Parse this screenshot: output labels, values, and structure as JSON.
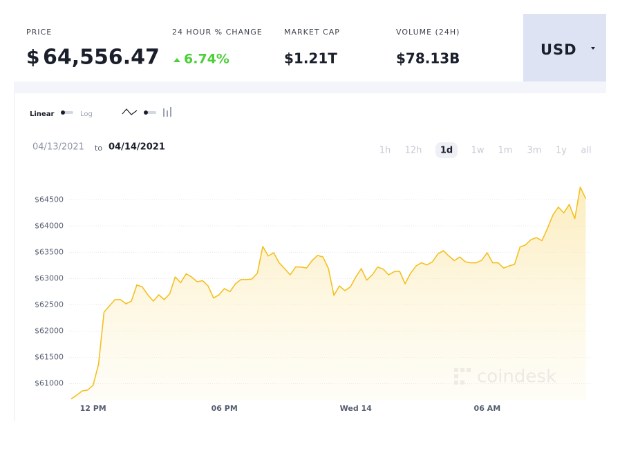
{
  "header": {
    "price": {
      "label": "PRICE",
      "symbol": "$",
      "value": "64,556.47"
    },
    "change": {
      "label": "24 HOUR % CHANGE",
      "value": "6.74%"
    },
    "market_cap": {
      "label": "MARKET CAP",
      "value": "$1.21T"
    },
    "volume": {
      "label": "VOLUME (24H)",
      "value": "$78.13B"
    },
    "currency": "USD"
  },
  "controls": {
    "scale_options": [
      "Linear",
      "Log"
    ],
    "date_from": "04/13/2021",
    "date_sep": "to",
    "date_to": "04/14/2021",
    "ranges": [
      "1h",
      "12h",
      "1d",
      "1w",
      "1m",
      "3m",
      "1y",
      "all"
    ],
    "active_range": "1d"
  },
  "watermark": "coindesk",
  "chart_data": {
    "type": "line",
    "color": "#f3c020",
    "area": true,
    "grid": true,
    "x": [
      11,
      11.25,
      11.5,
      11.75,
      12,
      12.25,
      12.5,
      12.75,
      13,
      13.25,
      13.5,
      13.75,
      14,
      14.25,
      14.5,
      14.75,
      15,
      15.25,
      15.5,
      15.75,
      16,
      16.25,
      16.5,
      16.75,
      17,
      17.25,
      17.5,
      17.75,
      18,
      18.25,
      18.5,
      18.75,
      19,
      19.25,
      19.5,
      19.75,
      20,
      20.25,
      20.5,
      20.75,
      21,
      21.25,
      21.5,
      21.75,
      22,
      22.25,
      22.5,
      22.75,
      23,
      23.25,
      23.5,
      23.75,
      24,
      24.25,
      24.5,
      24.75,
      25,
      25.25,
      25.5,
      25.75,
      26,
      26.25,
      26.5,
      26.75,
      27,
      27.25,
      27.5,
      27.75,
      28,
      28.25,
      28.5,
      28.75,
      29,
      29.25,
      29.5,
      29.75,
      30,
      30.25,
      30.5,
      30.75,
      31,
      31.25,
      31.5,
      31.75,
      32,
      32.25,
      32.5,
      32.75,
      33,
      33.25,
      33.5,
      33.75,
      34,
      34.25,
      34.5
    ],
    "values": [
      60710,
      60780,
      60860,
      60880,
      60970,
      61370,
      62360,
      62480,
      62600,
      62600,
      62520,
      62570,
      62880,
      62840,
      62690,
      62570,
      62690,
      62600,
      62710,
      63030,
      62920,
      63090,
      63030,
      62940,
      62960,
      62860,
      62630,
      62690,
      62810,
      62750,
      62900,
      62980,
      62980,
      62990,
      63100,
      63610,
      63430,
      63490,
      63300,
      63190,
      63070,
      63220,
      63220,
      63200,
      63340,
      63440,
      63410,
      63190,
      62680,
      62860,
      62770,
      62840,
      63030,
      63190,
      62970,
      63070,
      63220,
      63180,
      63070,
      63130,
      63140,
      62900,
      63100,
      63240,
      63300,
      63260,
      63320,
      63470,
      63530,
      63430,
      63340,
      63410,
      63320,
      63300,
      63300,
      63350,
      63490,
      63300,
      63300,
      63200,
      63240,
      63270,
      63600,
      63640,
      63740,
      63780,
      63720,
      63950,
      64210,
      64360,
      64250,
      64410,
      64140,
      64740,
      64520
    ],
    "xlim": [
      11,
      34.74
    ],
    "xticks": [
      {
        "value": 12,
        "label": "12 PM"
      },
      {
        "value": 18,
        "label": "06 PM"
      },
      {
        "value": 24,
        "label": "Wed 14"
      },
      {
        "value": 30,
        "label": "06 AM"
      }
    ],
    "ylim": [
      60680,
      64950
    ],
    "yticks": [
      {
        "value": 61000,
        "label": "$61000"
      },
      {
        "value": 61500,
        "label": "$61500"
      },
      {
        "value": 62000,
        "label": "$62000"
      },
      {
        "value": 62500,
        "label": "$62500"
      },
      {
        "value": 63000,
        "label": "$63000"
      },
      {
        "value": 63500,
        "label": "$63500"
      },
      {
        "value": 64000,
        "label": "$64000"
      },
      {
        "value": 64500,
        "label": "$64500"
      }
    ]
  }
}
